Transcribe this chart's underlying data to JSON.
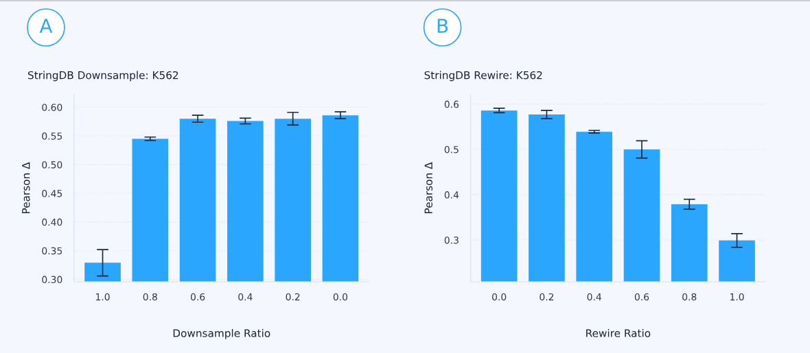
{
  "chart_data": [
    {
      "type": "bar",
      "title": "StringDB Downsample: K562",
      "xlabel": "Downsample Ratio",
      "ylabel": "Pearson Δ",
      "annotations": [
        "A"
      ],
      "categories": [
        "1.0",
        "0.8",
        "0.6",
        "0.4",
        "0.2",
        "0.0"
      ],
      "values": [
        0.329,
        0.545,
        0.58,
        0.576,
        0.58,
        0.586
      ],
      "errors": [
        0.023,
        0.003,
        0.006,
        0.005,
        0.011,
        0.006
      ],
      "color": "#2ba6ff",
      "ylim": [
        0.296,
        0.622
      ],
      "yticks": [
        {
          "value": 0.3,
          "label": "0.30"
        },
        {
          "value": 0.35,
          "label": "0.35"
        },
        {
          "value": 0.4,
          "label": "0.40"
        },
        {
          "value": 0.45,
          "label": "0.45"
        },
        {
          "value": 0.5,
          "label": "0.50"
        },
        {
          "value": 0.55,
          "label": "0.55"
        },
        {
          "value": 0.6,
          "label": "0.60"
        }
      ],
      "grid": "y"
    },
    {
      "type": "bar",
      "title": "StringDB Rewire: K562",
      "xlabel": "Rewire Ratio",
      "ylabel": "Pearson Δ",
      "annotations": [
        "B"
      ],
      "categories": [
        "0.0",
        "0.2",
        "0.4",
        "0.6",
        "0.8",
        "1.0"
      ],
      "values": [
        0.586,
        0.577,
        0.539,
        0.5,
        0.379,
        0.299
      ],
      "errors": [
        0.005,
        0.009,
        0.003,
        0.019,
        0.011,
        0.015
      ],
      "color": "#2ba6ff",
      "ylim": [
        0.208,
        0.621
      ],
      "yticks": [
        0.3,
        0.4,
        0.5,
        0.6
      ],
      "grid": "y"
    }
  ]
}
